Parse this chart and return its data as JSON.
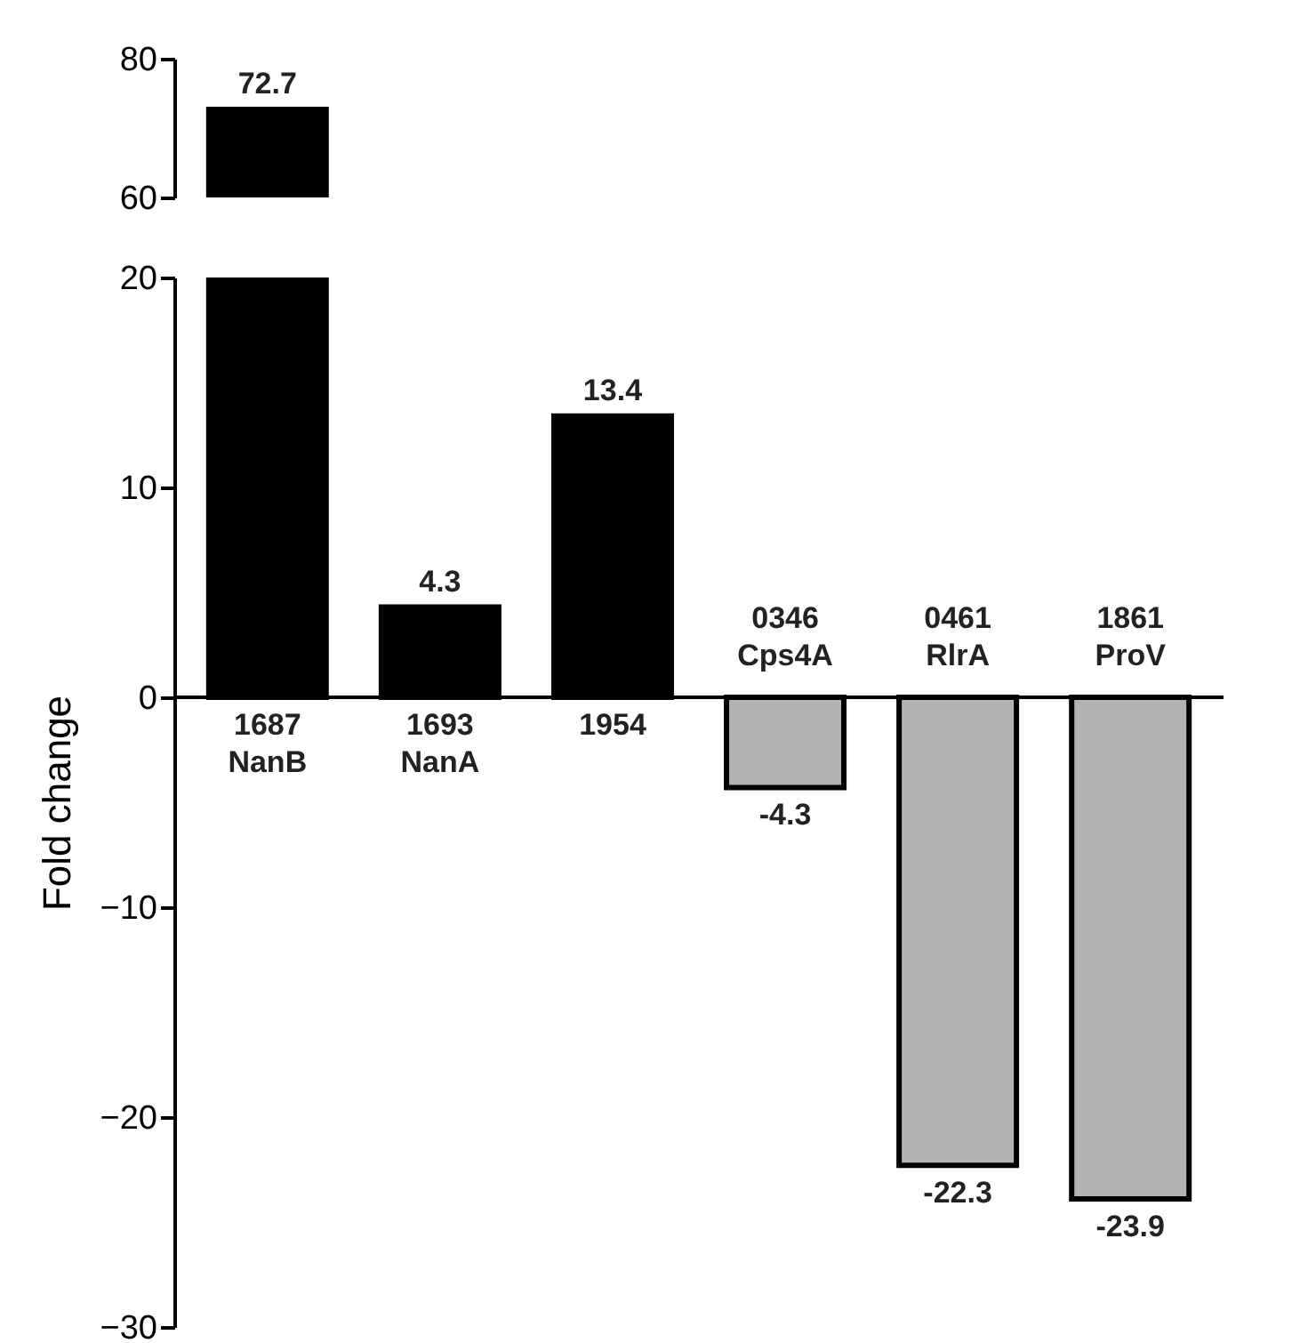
{
  "chart_data": [
    {
      "type": "bar",
      "categories": [
        "1687 NanB",
        "1693 NanA",
        "1954",
        "0346 Cps4A",
        "0461 RlrA",
        "1861 ProV"
      ],
      "values": [
        72.7,
        null,
        null,
        null,
        null,
        null
      ],
      "colors": [
        "#000000",
        "#000000",
        "#000000",
        "#b3b3b3",
        "#b3b3b3",
        "#b3b3b3"
      ],
      "ylim": [
        60,
        80
      ],
      "yticks": [
        60,
        80
      ],
      "data_labels": true,
      "tick_labels": "y"
    },
    {
      "type": "bar",
      "ylabel": "Fold change",
      "categories": [
        "1687 NanB",
        "1693 NanA",
        "1954",
        "0346 Cps4A",
        "0461 RlrA",
        "1861 ProV"
      ],
      "values": [
        null,
        4.3,
        13.4,
        -4.3,
        -22.3,
        -23.9
      ],
      "value_labels": [
        null,
        "4.3",
        "13.4",
        "-4.3",
        "-22.3",
        "-23.9"
      ],
      "colors": [
        "#000000",
        "#000000",
        "#000000",
        "#b3b3b3",
        "#b3b3b3",
        "#b3b3b3"
      ],
      "ylim": [
        -30,
        20
      ],
      "yticks": [
        -30,
        -20,
        -10,
        0,
        10,
        20
      ],
      "grid": false
    }
  ]
}
